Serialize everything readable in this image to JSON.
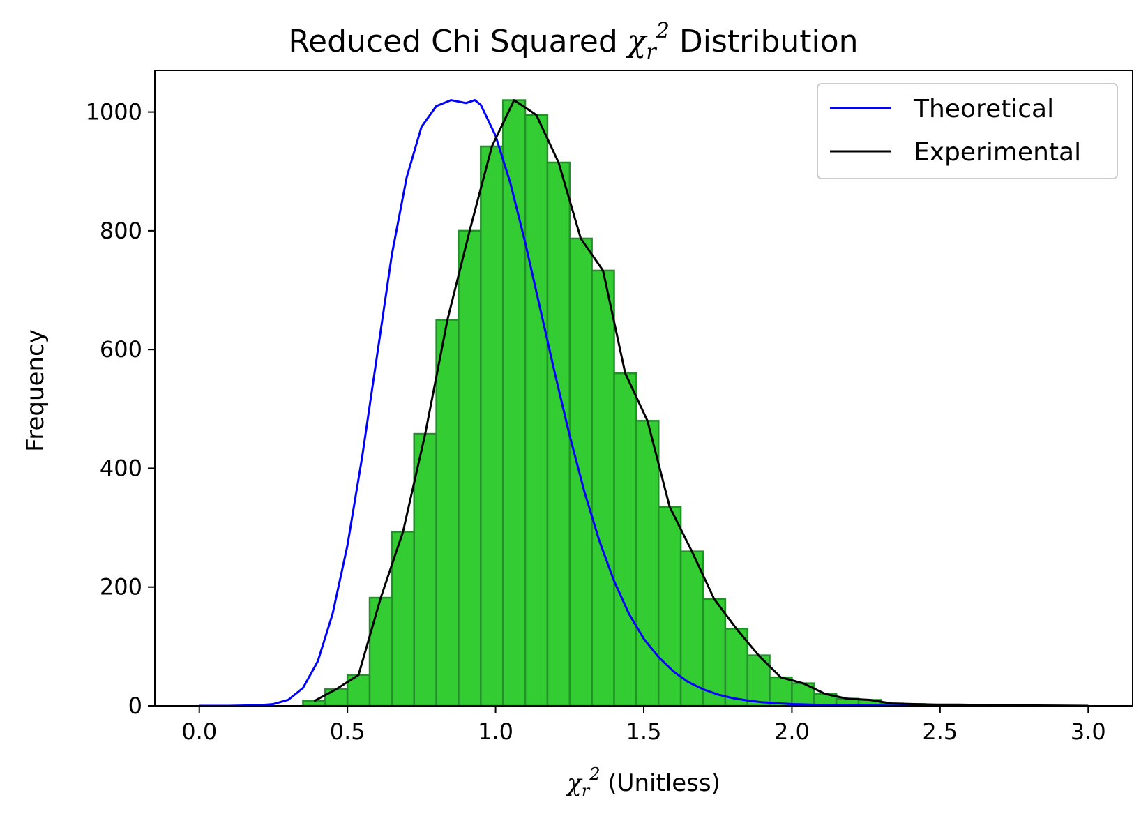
{
  "chart_data": {
    "type": "bar",
    "title_prefix": "Reduced Chi Squared ",
    "title_symbol": "χ",
    "title_subscript": "r",
    "title_superscript": "2",
    "title_suffix": " Distribution",
    "xlabel_symbol": "χ",
    "xlabel_subscript": "r",
    "xlabel_superscript": "2",
    "xlabel_suffix": " (Unitless)",
    "ylabel": "Frequency",
    "xlim": [
      -0.15,
      3.15
    ],
    "ylim": [
      0,
      1070
    ],
    "xticks": [
      0.0,
      0.5,
      1.0,
      1.5,
      2.0,
      2.5,
      3.0
    ],
    "xtick_labels": [
      "0.0",
      "0.5",
      "1.0",
      "1.5",
      "2.0",
      "2.5",
      "3.0"
    ],
    "yticks": [
      0,
      200,
      400,
      600,
      800,
      1000
    ],
    "ytick_labels": [
      "0",
      "200",
      "400",
      "600",
      "800",
      "1000"
    ],
    "grid": false,
    "legend_position": "top-right",
    "histogram": {
      "bin_width": 0.075,
      "bin_left_edges": [
        0.35,
        0.425,
        0.5,
        0.575,
        0.65,
        0.725,
        0.8,
        0.875,
        0.95,
        1.025,
        1.1,
        1.175,
        1.25,
        1.325,
        1.4,
        1.475,
        1.55,
        1.625,
        1.7,
        1.775,
        1.85,
        1.925,
        2.0,
        2.075,
        2.15,
        2.225,
        2.3,
        2.375,
        2.45,
        2.525
      ],
      "counts": [
        8,
        28,
        52,
        182,
        293,
        458,
        650,
        800,
        942,
        1020,
        995,
        915,
        787,
        733,
        560,
        480,
        335,
        260,
        180,
        130,
        85,
        48,
        38,
        20,
        12,
        10,
        4,
        3,
        2,
        2
      ],
      "fill_color": "#33cc33",
      "edge_color": "#23902a"
    },
    "series": [
      {
        "name": "Theoretical",
        "color": "#0000ff",
        "x": [
          0.0,
          0.1,
          0.2,
          0.25,
          0.3,
          0.35,
          0.4,
          0.45,
          0.5,
          0.55,
          0.6,
          0.65,
          0.7,
          0.75,
          0.8,
          0.85,
          0.9,
          0.93,
          0.95,
          1.0,
          1.05,
          1.1,
          1.15,
          1.2,
          1.25,
          1.3,
          1.35,
          1.4,
          1.45,
          1.5,
          1.55,
          1.6,
          1.65,
          1.7,
          1.75,
          1.8,
          1.85,
          1.9,
          2.0,
          2.1,
          2.2,
          2.3,
          2.4,
          2.6,
          2.8,
          3.0
        ],
        "y": [
          0,
          0,
          1,
          3,
          10,
          30,
          75,
          155,
          270,
          420,
          590,
          760,
          890,
          975,
          1010,
          1020,
          1015,
          1020,
          1012,
          960,
          880,
          780,
          670,
          560,
          455,
          360,
          278,
          210,
          155,
          113,
          82,
          58,
          40,
          28,
          19,
          13,
          9,
          6,
          3,
          1.5,
          0.8,
          0.4,
          0.2,
          0,
          0,
          0
        ]
      },
      {
        "name": "Experimental",
        "color": "#000000",
        "x": [
          0.3875,
          0.4625,
          0.5375,
          0.6125,
          0.6875,
          0.7625,
          0.8375,
          0.9125,
          0.9875,
          1.0625,
          1.1375,
          1.2125,
          1.2875,
          1.3625,
          1.4375,
          1.5125,
          1.5875,
          1.6625,
          1.7375,
          1.8125,
          1.8875,
          1.9625,
          2.0375,
          2.1125,
          2.1875,
          2.2625,
          2.3375,
          2.4125,
          2.4875,
          2.5625,
          2.7,
          3.0
        ],
        "y": [
          8,
          28,
          52,
          182,
          293,
          458,
          650,
          800,
          942,
          1020,
          995,
          915,
          787,
          733,
          560,
          480,
          335,
          260,
          180,
          130,
          85,
          48,
          38,
          20,
          12,
          10,
          4,
          3,
          2,
          2,
          1,
          0
        ]
      }
    ]
  }
}
